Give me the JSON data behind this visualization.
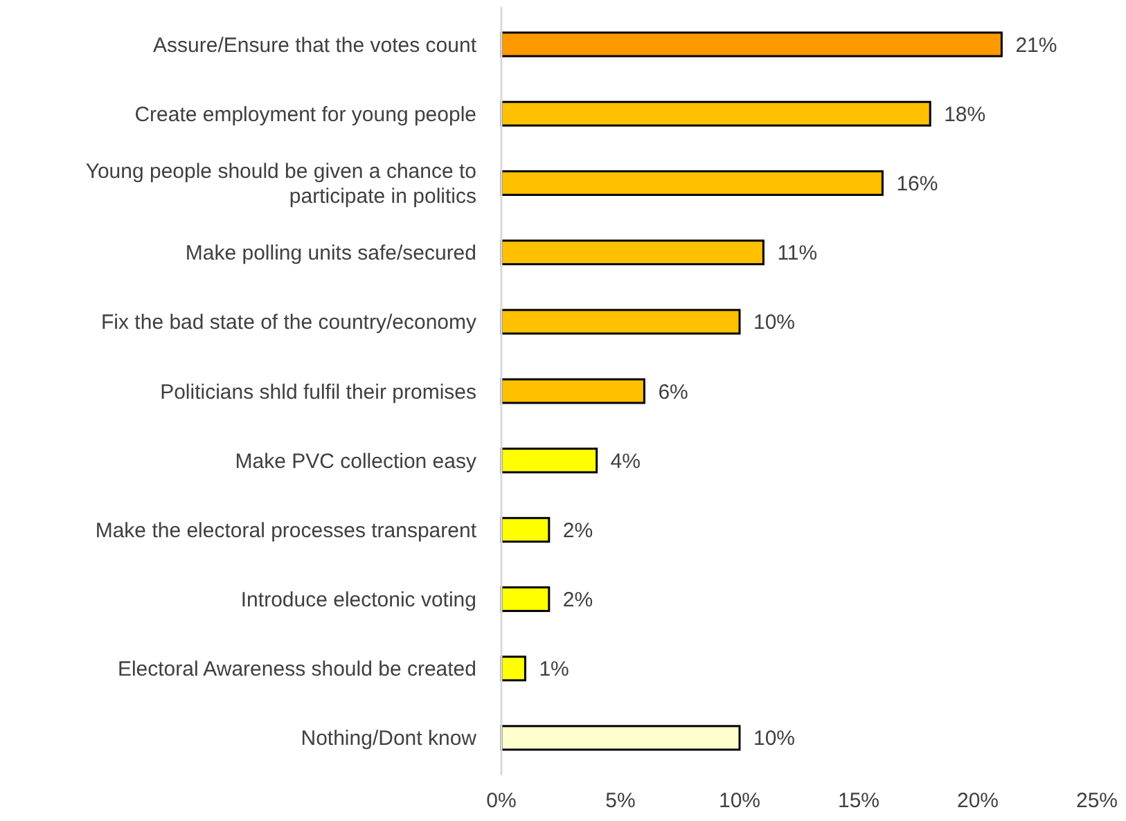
{
  "chart_data": {
    "type": "bar",
    "orientation": "horizontal",
    "categories": [
      "Assure/Ensure that the votes count",
      "Create employment for young people",
      "Young people should be given a chance to participate in politics",
      "Make polling units safe/secured",
      "Fix the bad state of the country/economy",
      "Politicians shld fulfil their promises",
      "Make PVC collection easy",
      "Make the electoral processes transparent",
      "Introduce electonic voting",
      "Electoral Awareness should be created",
      "Nothing/Dont know"
    ],
    "values": [
      21,
      18,
      16,
      11,
      10,
      6,
      4,
      2,
      2,
      1,
      10
    ],
    "colors": [
      "#ff9900",
      "#ffc000",
      "#ffc000",
      "#ffc000",
      "#ffc000",
      "#ffc000",
      "#ffff00",
      "#ffff00",
      "#ffff00",
      "#ffff00",
      "#ffffcc"
    ],
    "value_labels": [
      "21%",
      "18%",
      "16%",
      "11%",
      "10%",
      "6%",
      "4%",
      "2%",
      "2%",
      "1%",
      "10%"
    ],
    "xlim": [
      0,
      25
    ],
    "xticks": [
      {
        "value": 0,
        "label": "0%"
      },
      {
        "value": 5,
        "label": "5%"
      },
      {
        "value": 10,
        "label": "10%"
      },
      {
        "value": 15,
        "label": "15%"
      },
      {
        "value": 20,
        "label": "20%"
      },
      {
        "value": 25,
        "label": "25%"
      }
    ],
    "grid": false
  }
}
